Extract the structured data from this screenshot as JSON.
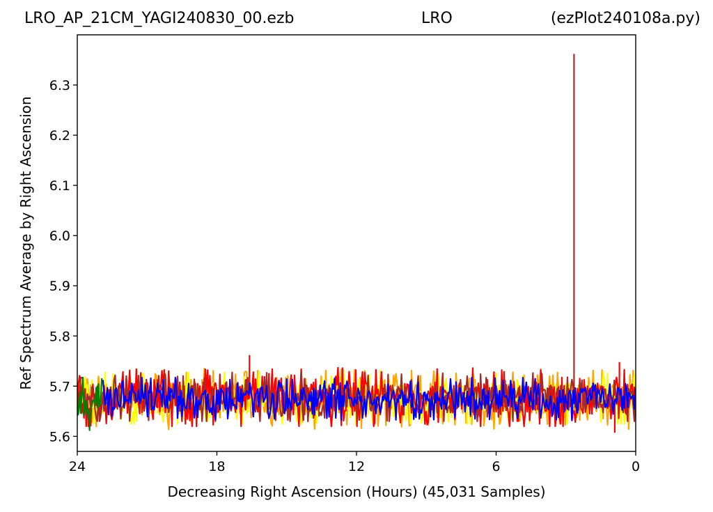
{
  "title": {
    "left": "LRO_AP_21CM_YAGI240830_00.ezb",
    "center": "LRO",
    "right": "(ezPlot240108a.py)"
  },
  "chart_data": {
    "type": "line",
    "xlabel": "Decreasing Right Ascension (Hours) (45,031 Samples)",
    "ylabel": "Ref Spectrum Average by Right Ascension",
    "xlim": [
      24,
      0
    ],
    "ylim": [
      5.57,
      6.4
    ],
    "x_ticks": [
      24,
      18,
      12,
      6,
      0
    ],
    "x_tick_labels": [
      "24",
      "18",
      "12",
      "6",
      "0"
    ],
    "y_ticks": [
      5.6,
      5.7,
      5.8,
      5.9,
      6.0,
      6.1,
      6.2,
      6.3
    ],
    "y_tick_labels": [
      "5.6",
      "5.7",
      "5.8",
      "5.9",
      "6.0",
      "6.1",
      "6.2",
      "6.3"
    ],
    "grid": false,
    "legend": "none",
    "series": [
      {
        "color": "#ffa500",
        "band": [
          5.612,
          5.735
        ],
        "baseline": 5.675
      },
      {
        "color": "#ffff00",
        "band": [
          5.625,
          5.742
        ],
        "baseline": 5.675
      },
      {
        "color": "#ff0000",
        "band": [
          5.62,
          5.745
        ],
        "baseline": 5.675,
        "spikes": [
          {
            "x": 16.6,
            "y": 5.762
          },
          {
            "x": 0.7,
            "y": 5.748
          },
          {
            "x": 0.9,
            "y": 5.607
          }
        ]
      },
      {
        "color": "#a52a2a",
        "band": [
          5.63,
          5.735
        ],
        "baseline": 5.675,
        "spikes": [
          {
            "x": 2.65,
            "y": 6.362
          }
        ]
      },
      {
        "color": "#008000",
        "band": [
          5.612,
          5.745
        ],
        "baseline": 5.675,
        "x_range": [
          24,
          22.9
        ]
      },
      {
        "color": "#0000ff",
        "band": [
          5.632,
          5.718
        ],
        "baseline": 5.675,
        "x_range": [
          22.9,
          0
        ]
      }
    ]
  }
}
